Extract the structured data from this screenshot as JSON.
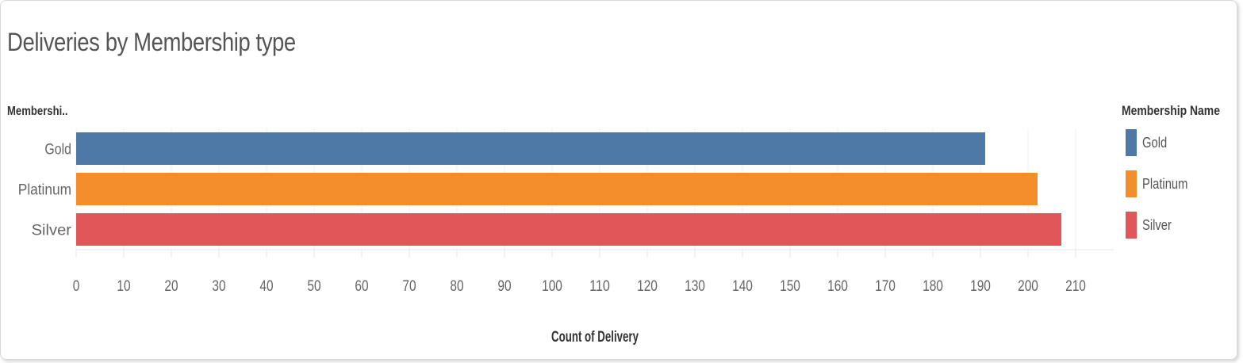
{
  "chart_data": {
    "type": "bar",
    "orientation": "horizontal",
    "title": "Deliveries by Membership type",
    "row_header": "Membershi..",
    "xlabel": "Count of Delivery",
    "categories": [
      "Gold",
      "Platinum",
      "Silver"
    ],
    "values": [
      191,
      202,
      207
    ],
    "colors": [
      "#4e79a7",
      "#f28e2b",
      "#e15759"
    ],
    "xlim": [
      0,
      218
    ],
    "xticks": [
      "0",
      "10",
      "20",
      "30",
      "40",
      "50",
      "60",
      "70",
      "80",
      "90",
      "100",
      "110",
      "120",
      "130",
      "140",
      "150",
      "160",
      "170",
      "180",
      "190",
      "200",
      "210"
    ],
    "grid": true,
    "legend": {
      "title": "Membership Name",
      "placement": "right",
      "items": [
        "Gold",
        "Platinum",
        "Silver"
      ]
    }
  }
}
